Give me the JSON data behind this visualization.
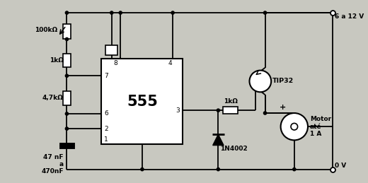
{
  "bg_color": "#c8c8c0",
  "line_color": "#000000",
  "labels": {
    "r1": "100kΩ",
    "r2": "1kΩ",
    "r3": "4,7kΩ",
    "c1": "47 nF\na\n470nF",
    "r4": "1kΩ",
    "transistor": "TIP32",
    "diode": "1N4002",
    "motor": "Motor\naté\n1 A",
    "vcc": "6 a 12 V",
    "gnd": "0 V",
    "ic": "555",
    "pin7": "7",
    "pin8": "8",
    "pin4": "4",
    "pin6": "6",
    "pin2": "2",
    "pin1": "1",
    "pin3": "3"
  }
}
